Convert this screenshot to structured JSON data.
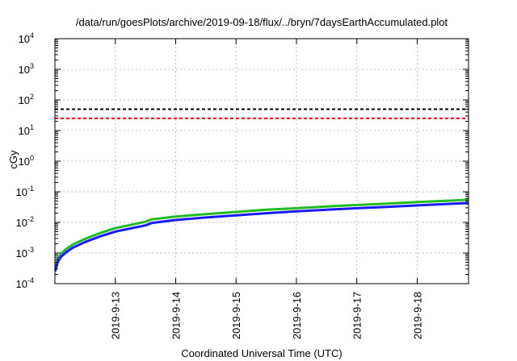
{
  "chart_data": {
    "type": "line",
    "title": "/data/run/goesPlots/archive/2019-09-18/flux/../bryn/7daysEarthAccumulated.plot",
    "xlabel": "Coordinated Universal Time (UTC)",
    "ylabel": "cGy",
    "y_scale": "log",
    "ylim": [
      0.0001,
      10000
    ],
    "xlim": [
      0,
      6.85
    ],
    "grid": true,
    "y_ticks": [
      {
        "value": 0.0001,
        "base": "10",
        "exp": "-4"
      },
      {
        "value": 0.001,
        "base": "10",
        "exp": "-3"
      },
      {
        "value": 0.01,
        "base": "10",
        "exp": "-2"
      },
      {
        "value": 0.1,
        "base": "10",
        "exp": "-1"
      },
      {
        "value": 1,
        "base": "10",
        "exp": "0"
      },
      {
        "value": 10,
        "base": "10",
        "exp": "1"
      },
      {
        "value": 100,
        "base": "10",
        "exp": "2"
      },
      {
        "value": 1000,
        "base": "10",
        "exp": "3"
      },
      {
        "value": 10000,
        "base": "10",
        "exp": "4"
      }
    ],
    "x_ticks": [
      {
        "value": 1,
        "label": "2019-9-13"
      },
      {
        "value": 2,
        "label": "2019-9-14"
      },
      {
        "value": 3,
        "label": "2019-9-15"
      },
      {
        "value": 4,
        "label": "2019-9-16"
      },
      {
        "value": 5,
        "label": "2019-9-17"
      },
      {
        "value": 6,
        "label": "2019-9-18"
      }
    ],
    "reference_lines": [
      {
        "y": 50,
        "color": "#000000",
        "style": "dashed"
      },
      {
        "y": 25,
        "color": "#ff0000",
        "style": "dashed"
      }
    ],
    "series": [
      {
        "color": "#22bb22",
        "x": [
          0,
          0.05,
          0.1,
          0.2,
          0.3,
          0.5,
          0.75,
          1.0,
          1.5,
          1.6,
          2.0,
          2.5,
          3.0,
          3.5,
          4.0,
          4.5,
          5.0,
          5.5,
          6.0,
          6.5,
          6.85
        ],
        "y": [
          0.00032,
          0.00065,
          0.00095,
          0.0014,
          0.0019,
          0.0029,
          0.0045,
          0.0065,
          0.0105,
          0.0125,
          0.0155,
          0.0185,
          0.022,
          0.026,
          0.029,
          0.033,
          0.037,
          0.041,
          0.046,
          0.051,
          0.055
        ]
      },
      {
        "color": "#1a1aff",
        "x": [
          0,
          0.05,
          0.1,
          0.2,
          0.3,
          0.5,
          0.75,
          1.0,
          1.5,
          1.6,
          2.0,
          2.5,
          3.0,
          3.5,
          4.0,
          4.5,
          5.0,
          5.5,
          6.0,
          6.5,
          6.85
        ],
        "y": [
          0.00025,
          0.00052,
          0.00075,
          0.0011,
          0.0015,
          0.0023,
          0.0035,
          0.005,
          0.008,
          0.0095,
          0.012,
          0.0145,
          0.017,
          0.02,
          0.023,
          0.026,
          0.029,
          0.032,
          0.036,
          0.04,
          0.043
        ]
      }
    ]
  }
}
